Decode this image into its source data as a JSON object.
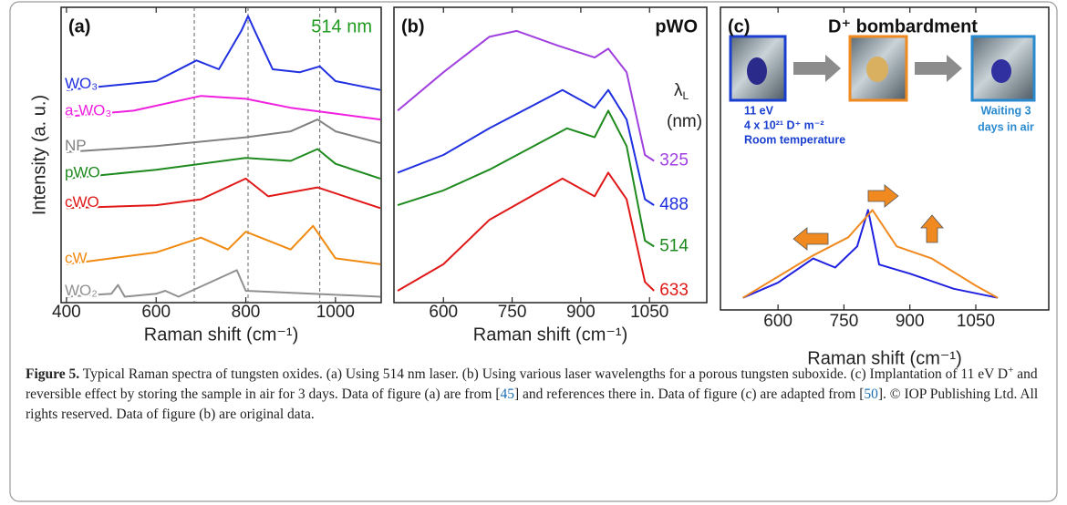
{
  "chart_data": [
    {
      "type": "line",
      "panel_label": "(a)",
      "annotation": "514 nm",
      "annotation_color": "#1e9a1e",
      "xlabel": "Raman shift (cm⁻¹)",
      "ylabel": "Intensity (a. u.)",
      "xlim": [
        388,
        1102
      ],
      "xticks": [
        400,
        600,
        800,
        1000
      ],
      "ylim": [
        0,
        100
      ],
      "vlines": [
        685,
        805,
        965
      ],
      "label_side": "left",
      "series": [
        {
          "name": "WO₃",
          "color": "#2030e0",
          "x": [
            400,
            600,
            690,
            740,
            790,
            805,
            820,
            860,
            920,
            965,
            1000,
            1100
          ],
          "values": [
            72,
            75,
            82,
            79,
            92,
            97,
            92,
            79,
            78,
            80,
            75,
            72
          ]
        },
        {
          "name": "a-WO₃",
          "color": "#f020e0",
          "x": [
            400,
            550,
            700,
            800,
            900,
            1000,
            1100
          ],
          "values": [
            63,
            65,
            70,
            69,
            66,
            64,
            62
          ]
        },
        {
          "name": "NP",
          "color": "#808080",
          "x": [
            400,
            600,
            800,
            900,
            960,
            1000,
            1100
          ],
          "values": [
            51,
            53,
            56,
            58,
            62,
            58,
            54
          ]
        },
        {
          "name": "pWO",
          "color": "#1e8a1e",
          "x": [
            400,
            600,
            800,
            900,
            960,
            1000,
            1100
          ],
          "values": [
            42,
            45,
            49,
            48,
            52,
            47,
            42
          ]
        },
        {
          "name": "cWO",
          "color": "#e01818",
          "x": [
            400,
            600,
            700,
            800,
            850,
            960,
            1100
          ],
          "values": [
            32,
            33,
            35,
            42,
            36,
            39,
            32
          ]
        },
        {
          "name": "cW",
          "color": "#f08a10",
          "x": [
            400,
            600,
            700,
            760,
            800,
            900,
            950,
            1000,
            1100
          ],
          "values": [
            13,
            17,
            22,
            18,
            24,
            18,
            26,
            15,
            13
          ]
        },
        {
          "name": "WO₂",
          "color": "#909090",
          "x": [
            400,
            500,
            515,
            530,
            600,
            620,
            650,
            780,
            800,
            1100
          ],
          "values": [
            2,
            3,
            6,
            2,
            3,
            4,
            2,
            11,
            4,
            2
          ]
        }
      ]
    },
    {
      "type": "line",
      "panel_label": "(b)",
      "annotation": "pWO",
      "annotation_color": "#111111",
      "legend_title": {
        "symbol": "λ",
        "subscript": "L",
        "unit": "(nm)"
      },
      "xlabel": "Raman shift (cm⁻¹)",
      "xlim": [
        492,
        1175
      ],
      "xticks": [
        600,
        750,
        900,
        1050
      ],
      "ylim": [
        0,
        100
      ],
      "label_side": "right",
      "series": [
        {
          "name": "325",
          "color": "#a040e0",
          "x": [
            500,
            600,
            700,
            760,
            850,
            930,
            960,
            1000,
            1040,
            1060
          ],
          "values": [
            65,
            78,
            90,
            92,
            87,
            83,
            86,
            78,
            50,
            48
          ]
        },
        {
          "name": "488",
          "color": "#2030e0",
          "x": [
            500,
            600,
            700,
            860,
            930,
            960,
            1000,
            1040,
            1060
          ],
          "values": [
            44,
            50,
            59,
            72,
            66,
            72,
            62,
            35,
            33
          ]
        },
        {
          "name": "514",
          "color": "#1e8a1e",
          "x": [
            500,
            600,
            700,
            870,
            930,
            960,
            1000,
            1040,
            1060
          ],
          "values": [
            33,
            38,
            45,
            59,
            56,
            65,
            53,
            21,
            19
          ]
        },
        {
          "name": "633",
          "color": "#e01818",
          "x": [
            500,
            600,
            700,
            860,
            930,
            960,
            1000,
            1040,
            1060
          ],
          "values": [
            4,
            13,
            28,
            42,
            36,
            44,
            35,
            7,
            4
          ]
        }
      ]
    },
    {
      "type": "line",
      "panel_label": "(c)",
      "title": "D⁺ bombardment",
      "notes": [
        "11 eV",
        "4 x 10²¹ D⁺ m⁻²",
        "Room temperature"
      ],
      "notes_color": "#1a3fd0",
      "notes2": [
        "Waiting 3",
        "days in air"
      ],
      "notes2_color": "#2a8ad0",
      "xlabel": "Raman shift (cm⁻¹)",
      "xlim": [
        469,
        1216
      ],
      "xticks": [
        600,
        750,
        900,
        1050
      ],
      "ylim": [
        0,
        100
      ],
      "series": [
        {
          "color": "#2020e0",
          "x": [
            520,
            600,
            680,
            730,
            780,
            805,
            830,
            900,
            1000,
            1100
          ],
          "values": [
            4,
            9,
            17,
            14,
            21,
            33,
            15,
            12,
            7,
            4
          ]
        },
        {
          "color": "#f08a20",
          "x": [
            520,
            600,
            680,
            760,
            815,
            870,
            950,
            1050,
            1100
          ],
          "values": [
            4,
            11,
            18,
            24,
            33,
            21,
            17,
            8,
            4
          ]
        }
      ]
    }
  ],
  "caption": [
    {
      "text": "Figure 5.",
      "style": "bold"
    },
    {
      "text": " Typical Raman spectra of tungsten oxides. (a) Using 514 nm laser. (b) Using various laser wavelengths for a porous tungsten suboxide. (c) Implantation of 11 eV D"
    },
    {
      "text": "+",
      "style": "sup"
    },
    {
      "text": " and reversible effect by storing the sample in air for 3 days. Data of figure (a) are from ["
    },
    {
      "text": "45",
      "style": "ref"
    },
    {
      "text": "] and references there in. Data of figure (c) are adapted from ["
    },
    {
      "text": "50",
      "style": "ref"
    },
    {
      "text": "]. © IOP Publishing Ltd. All rights reserved. Data of figure (b) are original data."
    }
  ]
}
